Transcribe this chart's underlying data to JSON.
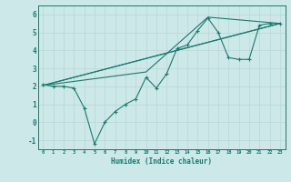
{
  "xlabel": "Humidex (Indice chaleur)",
  "ylabel": "",
  "bg_color": "#cce8e8",
  "grid_color": "#b8d8d8",
  "line_color": "#1a7a6e",
  "xlim": [
    -0.5,
    23.5
  ],
  "ylim": [
    -1.5,
    6.5
  ],
  "yticks": [
    -1,
    0,
    1,
    2,
    3,
    4,
    5,
    6
  ],
  "xticks": [
    0,
    1,
    2,
    3,
    4,
    5,
    6,
    7,
    8,
    9,
    10,
    11,
    12,
    13,
    14,
    15,
    16,
    17,
    18,
    19,
    20,
    21,
    22,
    23
  ],
  "lines": [
    {
      "x": [
        0,
        1,
        2,
        3,
        4,
        5,
        6,
        7,
        8,
        9,
        10,
        11,
        12,
        13,
        14,
        15,
        16,
        17,
        18,
        19,
        20,
        21,
        22,
        23
      ],
      "y": [
        2.1,
        2.0,
        2.0,
        1.9,
        0.8,
        -1.2,
        0.0,
        0.6,
        1.0,
        1.3,
        2.5,
        1.9,
        2.7,
        4.1,
        4.3,
        5.1,
        5.8,
        5.0,
        3.6,
        3.5,
        3.5,
        5.4,
        5.5,
        5.5
      ],
      "marker": true
    },
    {
      "x": [
        0,
        23
      ],
      "y": [
        2.05,
        5.5
      ],
      "marker": false
    },
    {
      "x": [
        0,
        23
      ],
      "y": [
        2.05,
        5.5
      ],
      "marker": false
    },
    {
      "x": [
        0,
        10,
        16,
        23
      ],
      "y": [
        2.05,
        2.8,
        5.85,
        5.5
      ],
      "marker": false
    }
  ]
}
